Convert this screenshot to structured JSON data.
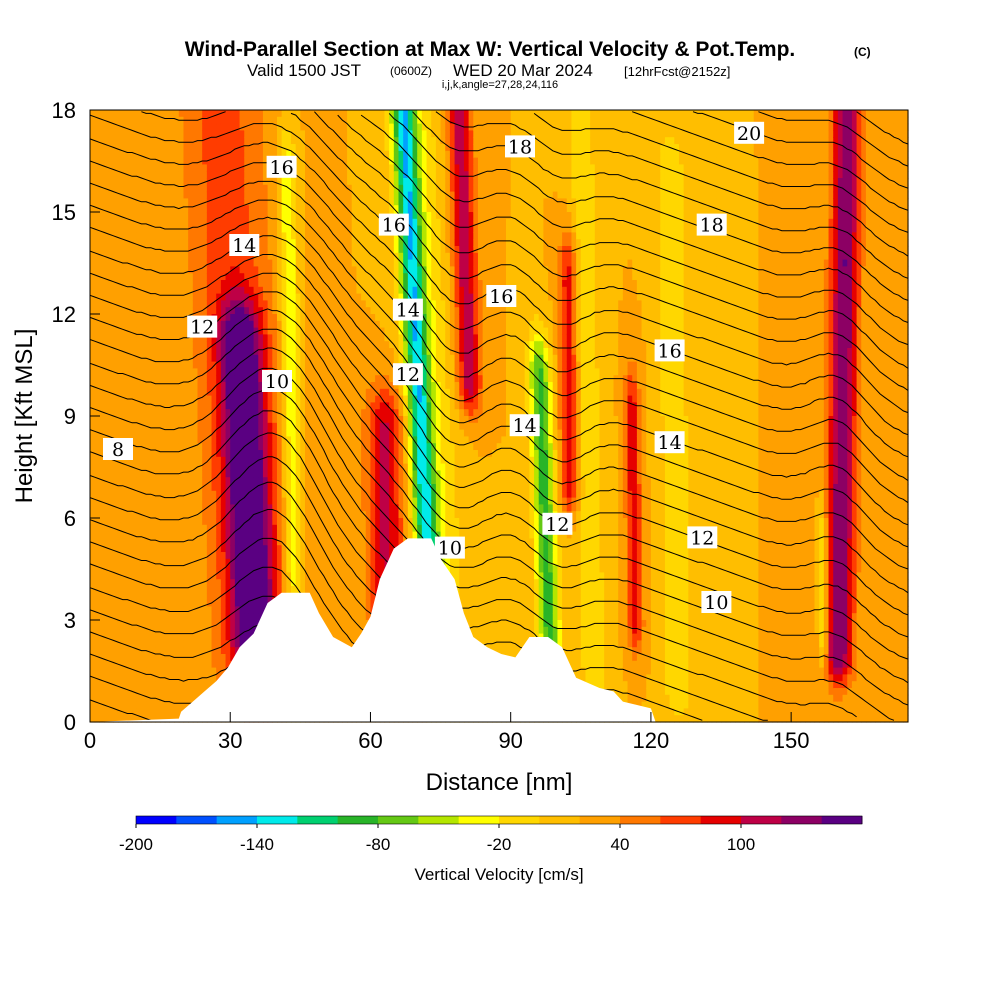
{
  "chart_data": {
    "type": "heatmap",
    "title": "Wind-Parallel Section at Max W: Vertical Velocity & Pot.Temp.",
    "title_mark": "(C)",
    "subtitle_valid": "Valid 1500 JST",
    "subtitle_utc": "(0600Z)",
    "subtitle_date": "WED 20 Mar 2024",
    "subtitle_fcst": "[12hrFcst@2152z]",
    "subtitle_indices": "i,j,k,angle=27,28,24,116",
    "xlabel": "Distance [nm]",
    "ylabel": "Height [Kft MSL]",
    "xlim": [
      0,
      175
    ],
    "ylim": [
      0,
      18
    ],
    "xticks": [
      0,
      30,
      60,
      90,
      120,
      150
    ],
    "yticks": [
      0,
      3,
      6,
      9,
      12,
      15,
      18
    ],
    "colorbar": {
      "label": "Vertical Velocity [cm/s]",
      "ticks": [
        -200,
        -140,
        -80,
        -20,
        40,
        100
      ],
      "levels": [
        -200,
        -180,
        -160,
        -140,
        -120,
        -100,
        -80,
        -60,
        -40,
        -20,
        0,
        20,
        40,
        60,
        80,
        100,
        120,
        140
      ],
      "colors": [
        "#0000ff",
        "#0050ff",
        "#00a0ff",
        "#00eaea",
        "#00d070",
        "#28b428",
        "#64c814",
        "#b4e600",
        "#ffff00",
        "#ffd700",
        "#ffbe00",
        "#ffa000",
        "#ff7800",
        "#ff3c00",
        "#e60000",
        "#be0046",
        "#8c0064",
        "#5a0082"
      ]
    },
    "vertical_velocity_cm_s": {
      "background": 20,
      "features": [
        {
          "x0": 36,
          "x1": 30,
          "w": 4.5,
          "h0": 2.5,
          "h1": 11,
          "amp": 130
        },
        {
          "x0": 36,
          "x1": 28,
          "w": 9,
          "h0": 1,
          "h1": 18,
          "amp": 50
        },
        {
          "x0": 44,
          "x1": 42,
          "w": 2,
          "h0": 1,
          "h1": 16,
          "amp": -60
        },
        {
          "x0": 64,
          "x1": 62,
          "w": 4,
          "h0": 3.5,
          "h1": 8.5,
          "amp": 85
        },
        {
          "x0": 74,
          "x1": 67,
          "w": 2.5,
          "h0": 4,
          "h1": 18,
          "amp": -130
        },
        {
          "x0": 77,
          "x1": 69,
          "w": 5,
          "h0": 4,
          "h1": 18,
          "amp": -40
        },
        {
          "x0": 84,
          "x1": 79,
          "w": 2.5,
          "h0": 10,
          "h1": 18,
          "amp": 95
        },
        {
          "x0": 99,
          "x1": 94,
          "w": 2.3,
          "h0": 2.5,
          "h1": 10,
          "amp": -110
        },
        {
          "x0": 103,
          "x1": 102,
          "w": 2,
          "h0": 7,
          "h1": 13,
          "amp": 75
        },
        {
          "x0": 108,
          "x1": 105,
          "w": 3,
          "h0": 1,
          "h1": 18,
          "amp": -35
        },
        {
          "x0": 117,
          "x1": 115,
          "w": 1.6,
          "h0": 3,
          "h1": 9,
          "amp": 75
        },
        {
          "x0": 126,
          "x1": 124,
          "w": 3,
          "h0": 1,
          "h1": 16,
          "amp": -40
        },
        {
          "x0": 160,
          "x1": 162,
          "w": 3,
          "h0": 2,
          "h1": 18,
          "amp": 120
        },
        {
          "x0": 157,
          "x1": 156,
          "w": 1,
          "h0": 2.5,
          "h1": 5,
          "amp": -60
        }
      ]
    },
    "theta_contours": [
      {
        "label": "8",
        "label_x": 6,
        "label_y": 8.0
      },
      {
        "label": "10",
        "label_x": 40,
        "label_y": 10.0
      },
      {
        "label": "12",
        "label_x": 24,
        "label_y": 11.6
      },
      {
        "label": "14",
        "label_x": 33,
        "label_y": 14.0
      },
      {
        "label": "16",
        "label_x": 41,
        "label_y": 16.3
      },
      {
        "label": "16",
        "label_x": 65,
        "label_y": 14.6
      },
      {
        "label": "14",
        "label_x": 68,
        "label_y": 12.1
      },
      {
        "label": "12",
        "label_x": 68,
        "label_y": 10.2
      },
      {
        "label": "10",
        "label_x": 77,
        "label_y": 5.1
      },
      {
        "label": "18",
        "label_x": 92,
        "label_y": 16.9
      },
      {
        "label": "16",
        "label_x": 88,
        "label_y": 12.5
      },
      {
        "label": "14",
        "label_x": 93,
        "label_y": 8.7
      },
      {
        "label": "12",
        "label_x": 100,
        "label_y": 5.8
      },
      {
        "label": "20",
        "label_x": 141,
        "label_y": 17.3
      },
      {
        "label": "18",
        "label_x": 133,
        "label_y": 14.6
      },
      {
        "label": "16",
        "label_x": 124,
        "label_y": 10.9
      },
      {
        "label": "14",
        "label_x": 124,
        "label_y": 8.2
      },
      {
        "label": "12",
        "label_x": 131,
        "label_y": 5.4
      },
      {
        "label": "10",
        "label_x": 134,
        "label_y": 3.5
      }
    ],
    "terrain_kft": [
      [
        0,
        0
      ],
      [
        19,
        0.1
      ],
      [
        19.5,
        0.3
      ],
      [
        22,
        0.6
      ],
      [
        24.5,
        0.9
      ],
      [
        27,
        1.2
      ],
      [
        29.5,
        1.6
      ],
      [
        32,
        2.2
      ],
      [
        35,
        2.6
      ],
      [
        38,
        3.5
      ],
      [
        41,
        3.8
      ],
      [
        47,
        3.8
      ],
      [
        49,
        3.2
      ],
      [
        52,
        2.5
      ],
      [
        56,
        2.2
      ],
      [
        58,
        2.6
      ],
      [
        60,
        3.1
      ],
      [
        62,
        4.2
      ],
      [
        65,
        5.1
      ],
      [
        68,
        5.4
      ],
      [
        73,
        5.4
      ],
      [
        75,
        4.8
      ],
      [
        78,
        4.2
      ],
      [
        80,
        3.2
      ],
      [
        82,
        2.5
      ],
      [
        85,
        2.2
      ],
      [
        88,
        2.0
      ],
      [
        91,
        1.9
      ],
      [
        94,
        2.5
      ],
      [
        98,
        2.5
      ],
      [
        101,
        2.2
      ],
      [
        104,
        1.3
      ],
      [
        109,
        1.0
      ],
      [
        112,
        0.9
      ],
      [
        114,
        0.6
      ],
      [
        120,
        0.4
      ],
      [
        121,
        0
      ]
    ]
  }
}
